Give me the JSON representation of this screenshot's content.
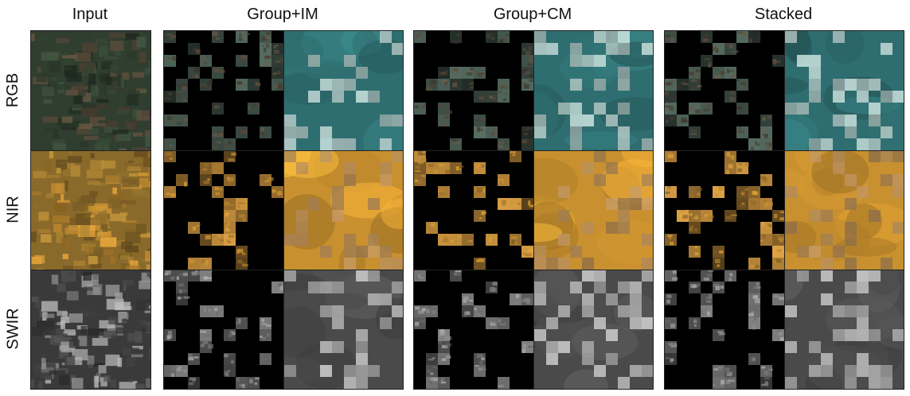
{
  "columns": [
    {
      "key": "input",
      "title": "Input"
    },
    {
      "key": "group_im",
      "title": "Group+IM"
    },
    {
      "key": "group_cm",
      "title": "Group+CM"
    },
    {
      "key": "stacked",
      "title": "Stacked"
    }
  ],
  "rows": [
    {
      "key": "rgb",
      "label": "RGB",
      "colors": {
        "input_base": "#2f3e2f",
        "input_accent": "#5a4a3a",
        "masked": "#3c4c44",
        "recon_base": "#2f6e70",
        "recon_patch": "#cfe0dc"
      }
    },
    {
      "key": "nir",
      "label": "NIR",
      "colors": {
        "input_base": "#8a6a2a",
        "input_accent": "#c08a30",
        "masked": "#9a7030",
        "recon_base": "#c8902e",
        "recon_patch": "#b89060"
      }
    },
    {
      "key": "swir",
      "label": "SWIR",
      "colors": {
        "input_base": "#3a3a3a",
        "input_accent": "#9a9a9a",
        "masked": "#5a5a5a",
        "recon_base": "#4a4a4a",
        "recon_patch": "#cfcfcf"
      }
    }
  ],
  "figure": {
    "description_icons": [
      "masked-patch-grid",
      "reconstructed-image"
    ]
  }
}
